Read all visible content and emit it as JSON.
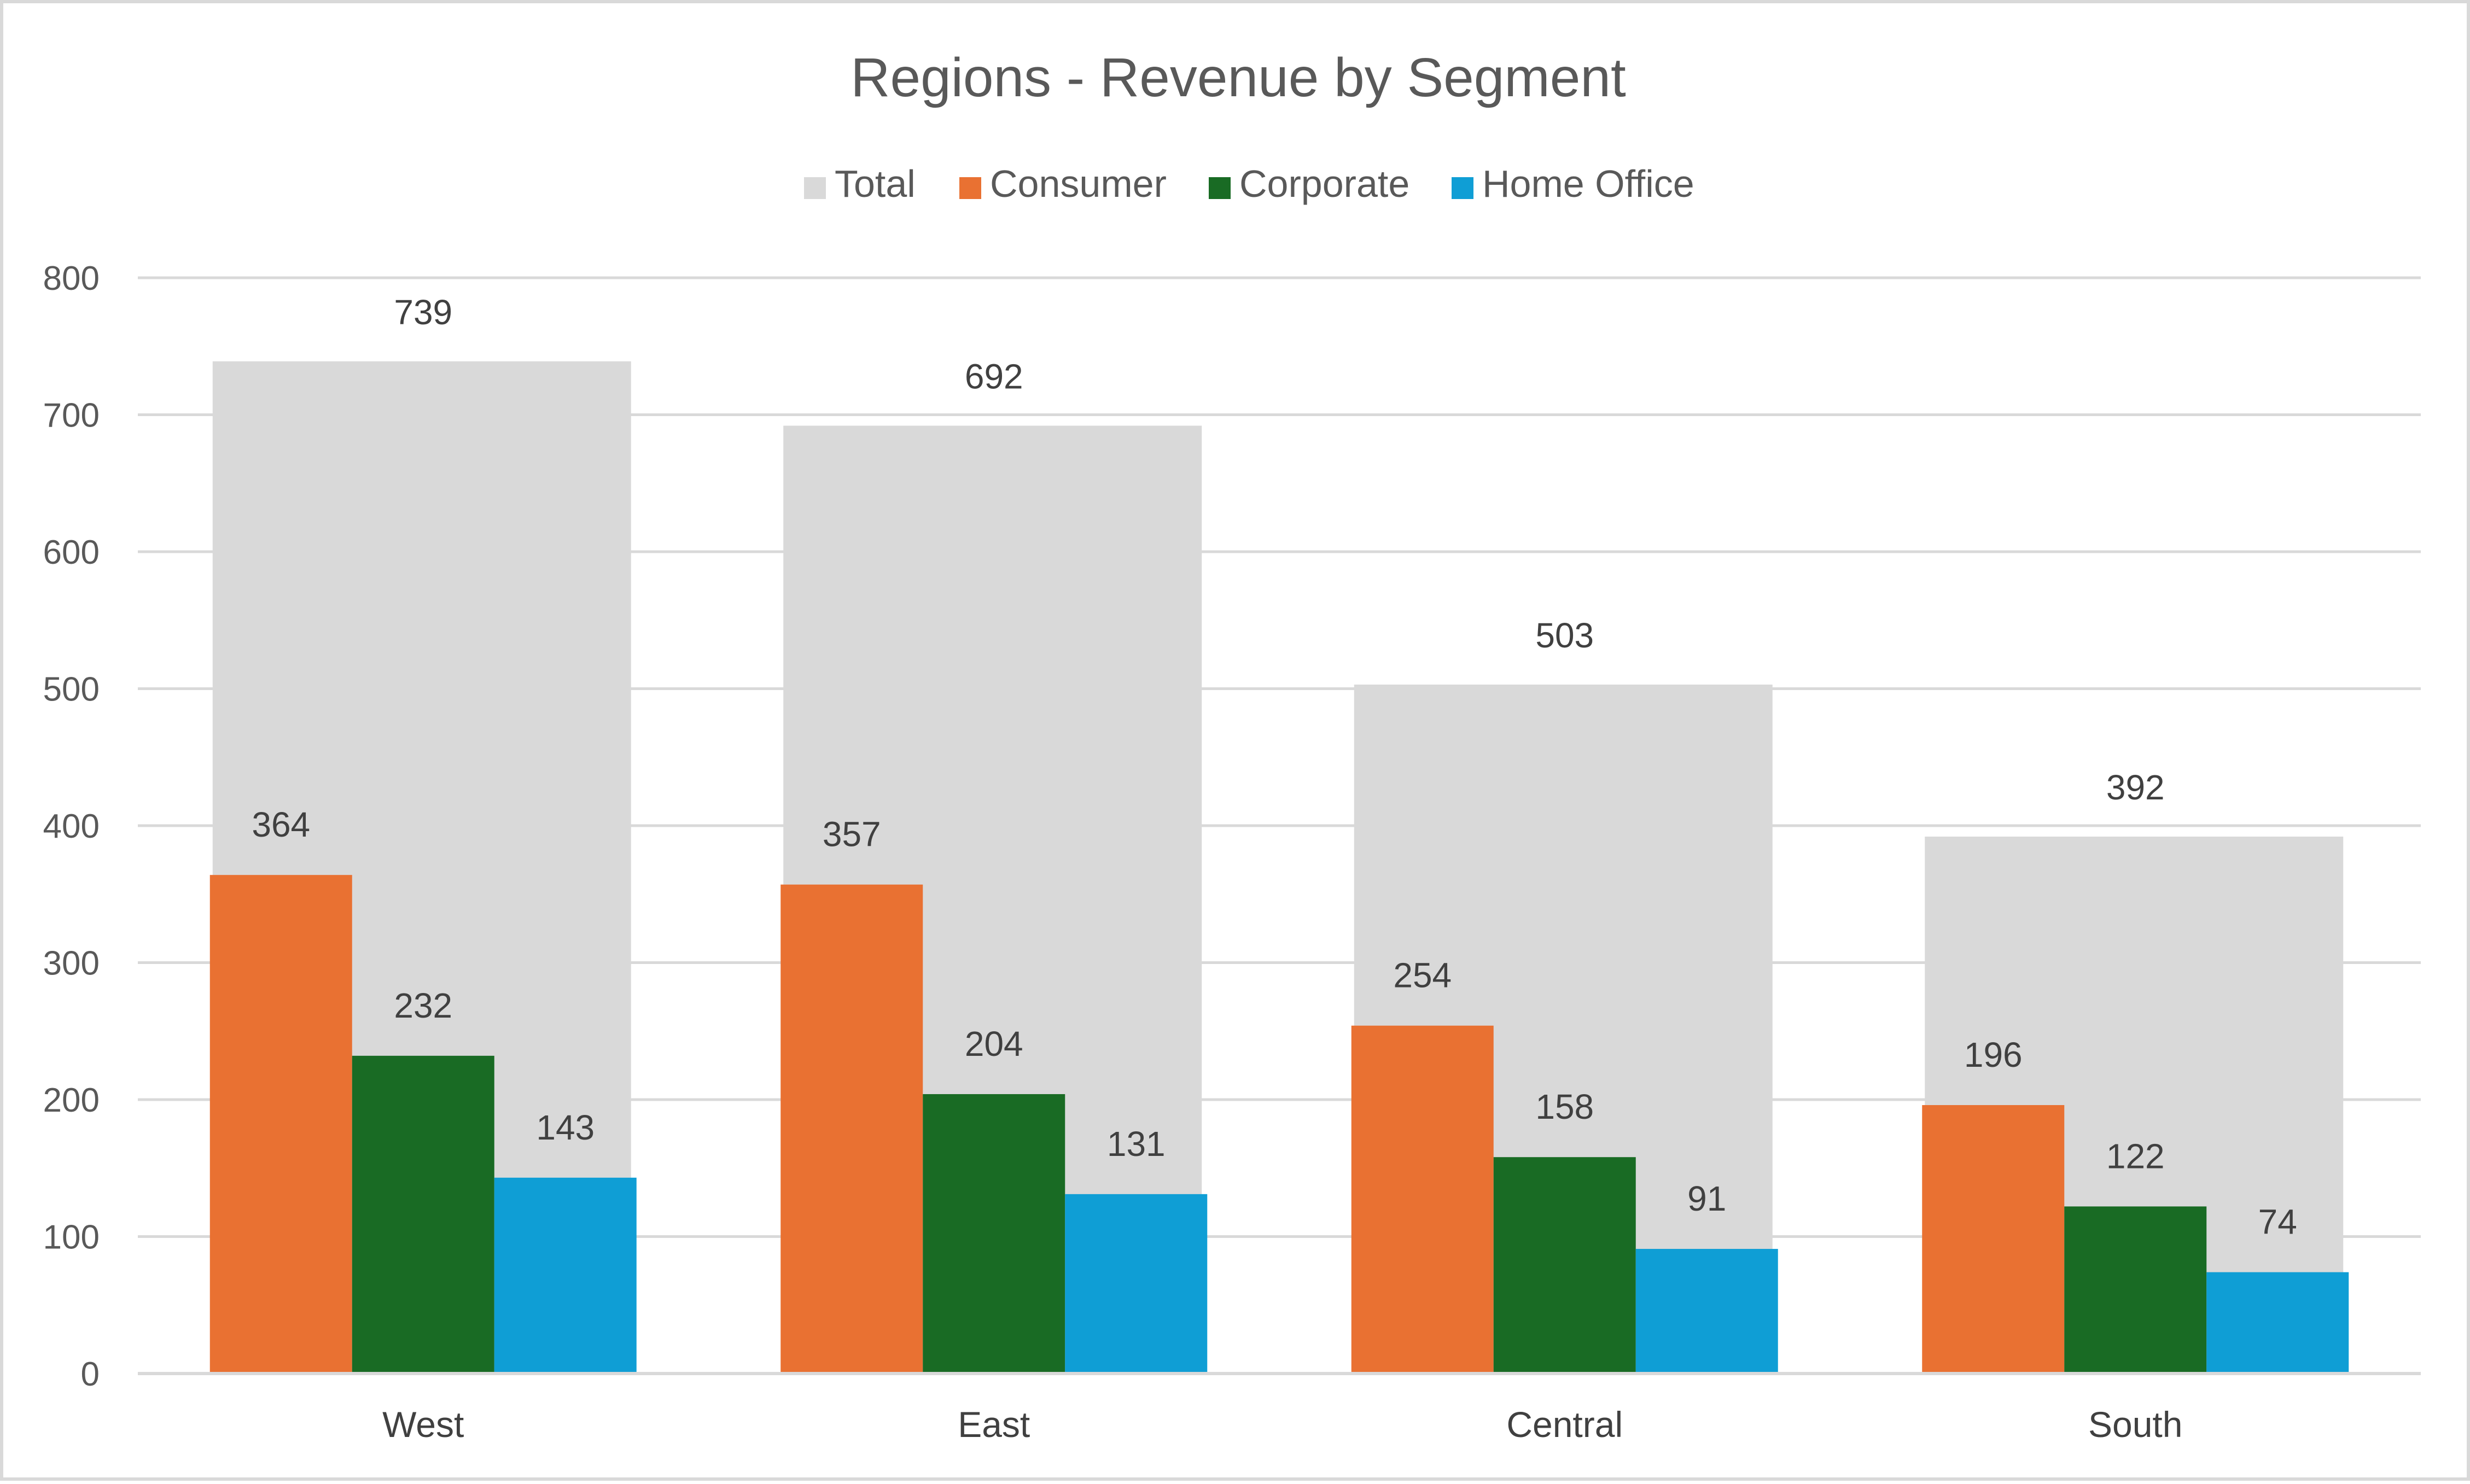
{
  "chart_data": {
    "type": "bar",
    "title": "Regions - Revenue by Segment",
    "xlabel": "",
    "ylabel": "",
    "ylim": [
      0,
      800
    ],
    "yticks": [
      0,
      100,
      200,
      300,
      400,
      500,
      600,
      700,
      800
    ],
    "grid": true,
    "legend_position": "top",
    "categories": [
      "West",
      "East",
      "Central",
      "South"
    ],
    "overlay_series": {
      "name": "Total",
      "values": [
        739,
        692,
        503,
        392
      ],
      "color": "#d9d9d9"
    },
    "series": [
      {
        "name": "Consumer",
        "values": [
          364,
          357,
          254,
          196
        ],
        "color": "#e97132"
      },
      {
        "name": "Corporate",
        "values": [
          232,
          204,
          158,
          122
        ],
        "color": "#196b24"
      },
      {
        "name": "Home Office",
        "values": [
          143,
          131,
          91,
          74
        ],
        "color": "#0f9ed5"
      }
    ]
  }
}
